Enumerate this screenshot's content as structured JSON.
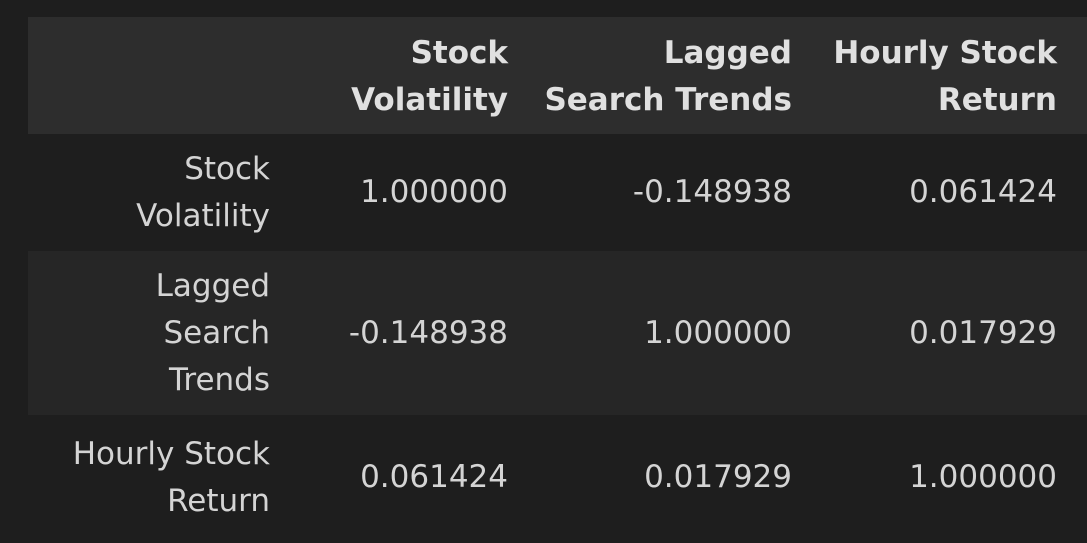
{
  "table": {
    "columns": [
      "",
      "Stock Volatility",
      "Lagged Search Trends",
      "Hourly Stock Return"
    ],
    "header_lines": {
      "col1": [
        "Stock",
        "Volatility"
      ],
      "col2": [
        "Lagged",
        "Search Trends"
      ],
      "col3": [
        "Hourly Stock",
        "Return"
      ]
    },
    "rows": [
      {
        "index_lines": [
          "Stock",
          "Volatility"
        ],
        "values": [
          "1.000000",
          "-0.148938",
          "0.061424"
        ]
      },
      {
        "index_lines": [
          "Lagged",
          "Search",
          "Trends"
        ],
        "values": [
          "-0.148938",
          "1.000000",
          "0.017929"
        ]
      },
      {
        "index_lines": [
          "Hourly Stock",
          "Return"
        ],
        "values": [
          "0.061424",
          "0.017929",
          "1.000000"
        ]
      }
    ]
  }
}
